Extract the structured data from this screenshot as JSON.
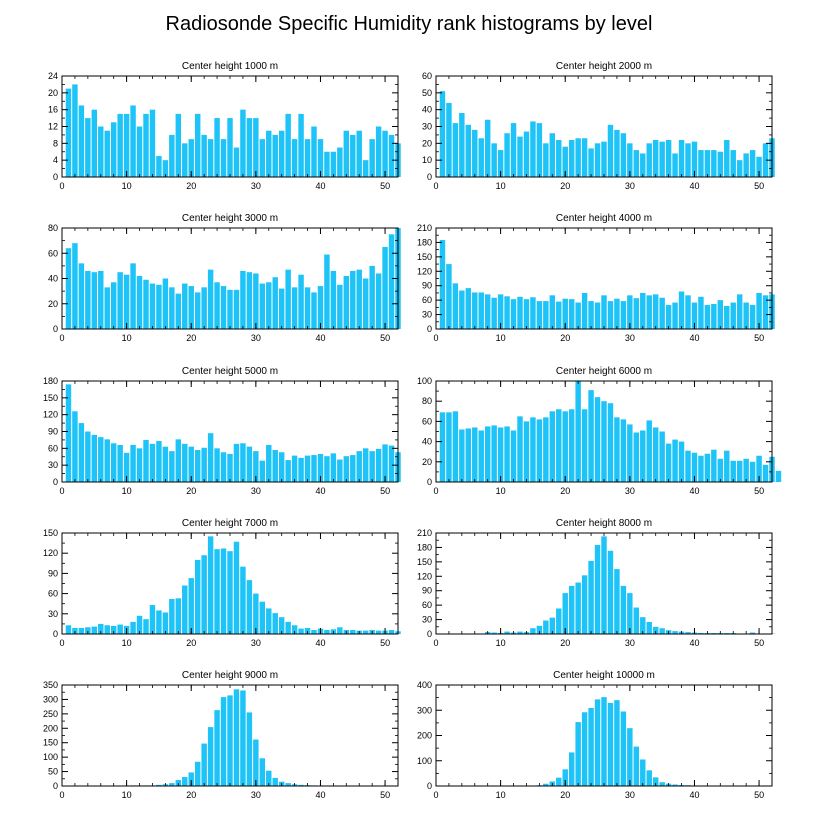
{
  "title": "Radiosonde Specific Humidity rank histograms by level",
  "colors": {
    "bar": "#1ec3f7",
    "axis": "#000000"
  },
  "chart_data": [
    {
      "type": "bar",
      "title": "Center height 1000 m",
      "xlim": [
        0,
        52
      ],
      "xticks": [
        0,
        10,
        20,
        30,
        40,
        50
      ],
      "ylim": [
        0,
        24
      ],
      "yticks": [
        0,
        4,
        8,
        12,
        16,
        20,
        24
      ],
      "values": [
        21,
        22,
        17,
        14,
        16,
        12,
        11,
        13,
        15,
        15,
        17,
        12,
        15,
        16,
        5,
        4,
        10,
        15,
        8,
        9,
        15,
        10,
        9,
        14,
        9,
        14,
        7,
        16,
        14,
        14,
        9,
        11,
        10,
        11,
        15,
        9,
        15,
        9,
        12,
        9,
        6,
        6,
        7,
        11,
        10,
        11,
        4,
        9,
        12,
        11,
        10,
        8
      ]
    },
    {
      "type": "bar",
      "title": "Center height 2000 m",
      "xlim": [
        0,
        52
      ],
      "xticks": [
        0,
        10,
        20,
        30,
        40,
        50
      ],
      "ylim": [
        0,
        60
      ],
      "yticks": [
        0,
        10,
        20,
        30,
        40,
        50,
        60
      ],
      "values": [
        51,
        44,
        32,
        38,
        31,
        28,
        23,
        34,
        20,
        16,
        26,
        32,
        24,
        27,
        33,
        32,
        20,
        26,
        22,
        18,
        22,
        23,
        23,
        17,
        20,
        21,
        31,
        28,
        26,
        20,
        16,
        14,
        20,
        22,
        21,
        22,
        14,
        22,
        20,
        21,
        16,
        16,
        16,
        15,
        22,
        16,
        10,
        14,
        16,
        12,
        20,
        23
      ]
    },
    {
      "type": "bar",
      "title": "Center height 3000 m",
      "xlim": [
        0,
        52
      ],
      "xticks": [
        0,
        10,
        20,
        30,
        40,
        50
      ],
      "ylim": [
        0,
        80
      ],
      "yticks": [
        0,
        20,
        40,
        60,
        80
      ],
      "values": [
        64,
        68,
        52,
        46,
        45,
        46,
        33,
        37,
        45,
        43,
        52,
        42,
        39,
        36,
        35,
        40,
        33,
        28,
        36,
        34,
        29,
        33,
        47,
        37,
        34,
        31,
        31,
        46,
        45,
        44,
        36,
        37,
        41,
        32,
        47,
        33,
        43,
        33,
        29,
        34,
        59,
        46,
        35,
        42,
        46,
        47,
        40,
        50,
        44,
        65,
        75,
        80
      ]
    },
    {
      "type": "bar",
      "title": "Center height 4000 m",
      "xlim": [
        0,
        52
      ],
      "xticks": [
        0,
        10,
        20,
        30,
        40,
        50
      ],
      "ylim": [
        0,
        210
      ],
      "yticks": [
        0,
        30,
        60,
        90,
        120,
        150,
        180,
        210
      ],
      "values": [
        185,
        135,
        95,
        80,
        85,
        76,
        76,
        72,
        65,
        72,
        68,
        62,
        67,
        62,
        66,
        58,
        58,
        70,
        57,
        63,
        62,
        55,
        75,
        58,
        55,
        70,
        58,
        63,
        58,
        70,
        64,
        75,
        70,
        72,
        65,
        50,
        55,
        78,
        70,
        55,
        67,
        50,
        52,
        60,
        48,
        55,
        72,
        55,
        50,
        75,
        70,
        72
      ]
    },
    {
      "type": "bar",
      "title": "Center height 5000 m",
      "xlim": [
        0,
        52
      ],
      "xticks": [
        0,
        10,
        20,
        30,
        40,
        50
      ],
      "ylim": [
        0,
        180
      ],
      "yticks": [
        0,
        30,
        60,
        90,
        120,
        150,
        180
      ],
      "values": [
        174,
        126,
        105,
        90,
        84,
        80,
        76,
        69,
        66,
        52,
        66,
        60,
        75,
        68,
        73,
        63,
        55,
        76,
        68,
        63,
        57,
        61,
        87,
        60,
        53,
        50,
        68,
        69,
        63,
        55,
        38,
        66,
        57,
        53,
        39,
        47,
        43,
        47,
        48,
        50,
        46,
        51,
        40,
        46,
        48,
        55,
        60,
        55,
        59,
        67,
        65,
        53
      ]
    },
    {
      "type": "bar",
      "title": "Center height 6000 m",
      "xlim": [
        0,
        52
      ],
      "xticks": [
        0,
        10,
        20,
        30,
        40,
        50
      ],
      "ylim": [
        0,
        100
      ],
      "yticks": [
        0,
        20,
        40,
        60,
        80,
        100
      ],
      "values": [
        69,
        69,
        70,
        52,
        53,
        54,
        51,
        55,
        56,
        54,
        55,
        51,
        65,
        60,
        64,
        62,
        64,
        70,
        72,
        70,
        72,
        100,
        72,
        91,
        84,
        80,
        78,
        64,
        62,
        57,
        49,
        51,
        61,
        54,
        50,
        38,
        42,
        40,
        31,
        29,
        26,
        28,
        32,
        23,
        31,
        21,
        21,
        23,
        20,
        26,
        17,
        25,
        11
      ]
    },
    {
      "type": "bar",
      "title": "Center height 7000 m",
      "xlim": [
        0,
        52
      ],
      "xticks": [
        0,
        10,
        20,
        30,
        40,
        50
      ],
      "ylim": [
        0,
        150
      ],
      "yticks": [
        0,
        30,
        60,
        90,
        120,
        150
      ],
      "values": [
        13,
        9,
        9,
        10,
        11,
        15,
        13,
        12,
        14,
        12,
        18,
        27,
        22,
        43,
        35,
        32,
        52,
        53,
        72,
        83,
        110,
        117,
        145,
        126,
        127,
        123,
        137,
        100,
        80,
        60,
        48,
        38,
        31,
        25,
        18,
        13,
        8,
        9,
        6,
        8,
        6,
        7,
        10,
        6,
        6,
        5,
        5,
        6,
        5,
        5,
        6,
        4
      ]
    },
    {
      "type": "bar",
      "title": "Center height 8000 m",
      "xlim": [
        0,
        52
      ],
      "xticks": [
        0,
        10,
        20,
        30,
        40,
        50
      ],
      "ylim": [
        0,
        210
      ],
      "yticks": [
        0,
        30,
        60,
        90,
        120,
        150,
        180,
        210
      ],
      "values": [
        1,
        1,
        1,
        1,
        1,
        1,
        1,
        4,
        3,
        2,
        5,
        3,
        5,
        4,
        12,
        17,
        28,
        34,
        53,
        85,
        100,
        107,
        122,
        152,
        185,
        203,
        173,
        135,
        100,
        85,
        55,
        35,
        25,
        15,
        12,
        8,
        6,
        5,
        4,
        3,
        2,
        2,
        2,
        2,
        2,
        2,
        1,
        1,
        3,
        1,
        1,
        1
      ]
    },
    {
      "type": "bar",
      "title": "Center height 9000 m",
      "xlim": [
        0,
        52
      ],
      "xticks": [
        0,
        10,
        20,
        30,
        40,
        50
      ],
      "ylim": [
        0,
        350
      ],
      "yticks": [
        0,
        50,
        100,
        150,
        200,
        250,
        300,
        350
      ],
      "values": [
        0,
        0,
        0,
        0,
        0,
        0,
        0,
        0,
        0,
        1,
        2,
        2,
        2,
        2,
        4,
        6,
        10,
        21,
        31,
        47,
        84,
        147,
        204,
        263,
        308,
        314,
        335,
        331,
        255,
        161,
        96,
        53,
        28,
        15,
        10,
        6,
        4,
        3,
        2,
        1,
        1,
        1,
        1,
        1,
        0,
        0,
        0,
        0,
        0,
        0,
        0,
        0
      ]
    },
    {
      "type": "bar",
      "title": "Center height 10000 m",
      "xlim": [
        0,
        52
      ],
      "xticks": [
        0,
        10,
        20,
        30,
        40,
        50
      ],
      "ylim": [
        0,
        400
      ],
      "yticks": [
        0,
        100,
        200,
        300,
        400
      ],
      "values": [
        0,
        0,
        0,
        0,
        0,
        0,
        0,
        0,
        0,
        0,
        0,
        0,
        0,
        0,
        1,
        3,
        9,
        18,
        33,
        66,
        133,
        253,
        292,
        309,
        343,
        352,
        329,
        340,
        295,
        229,
        156,
        105,
        62,
        34,
        15,
        9,
        6,
        4,
        3,
        2,
        1,
        1,
        1,
        1,
        0,
        0,
        0,
        0,
        0,
        0,
        0,
        0
      ]
    }
  ]
}
